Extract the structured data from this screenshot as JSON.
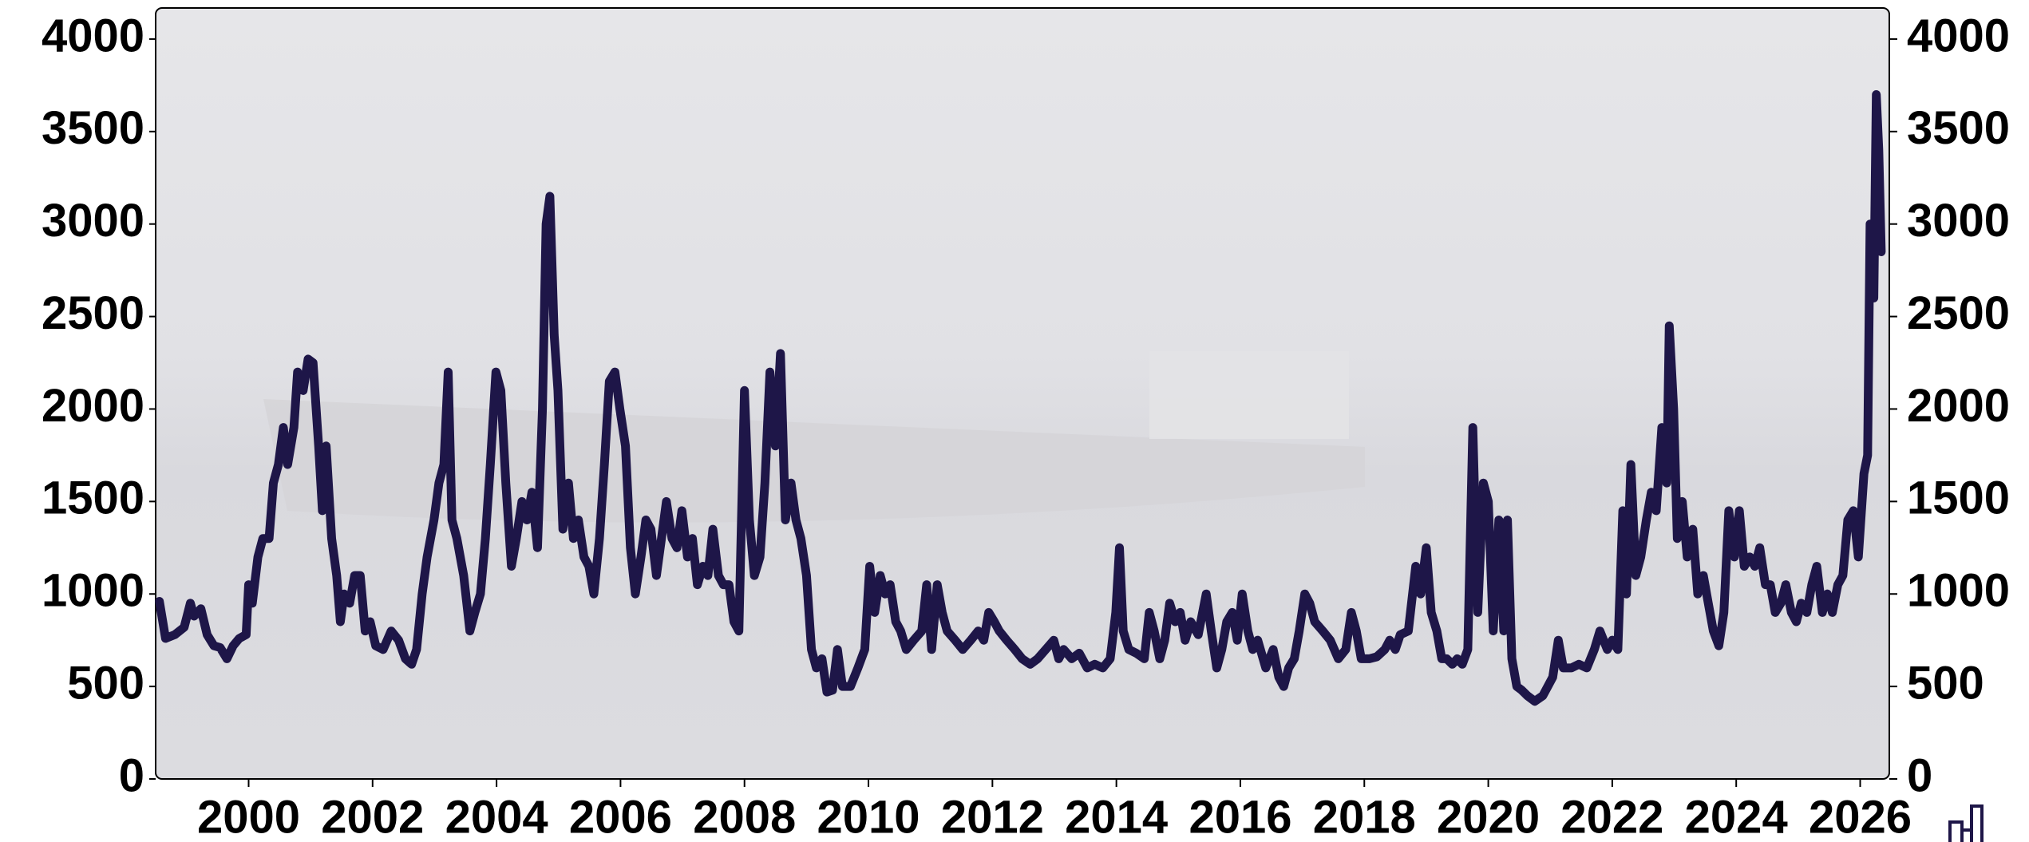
{
  "chart_data": {
    "type": "line",
    "x": [
      1998.56,
      1998.66,
      1998.81,
      1998.96,
      1999.06,
      1999.12,
      1999.23,
      1999.33,
      1999.44,
      1999.54,
      1999.65,
      1999.75,
      1999.85,
      1999.96,
      2000.0,
      2000.06,
      2000.15,
      2000.23,
      2000.33,
      2000.4,
      2000.48,
      2000.56,
      2000.63,
      2000.73,
      2000.79,
      2000.88,
      2000.96,
      2001.04,
      2001.13,
      2001.19,
      2001.25,
      2001.34,
      2001.42,
      2001.48,
      2001.54,
      2001.63,
      2001.71,
      2001.8,
      2001.88,
      2001.96,
      2002.05,
      2002.17,
      2002.3,
      2002.42,
      2002.53,
      2002.63,
      2002.71,
      2002.8,
      2002.88,
      2002.99,
      2003.07,
      2003.15,
      2003.22,
      2003.28,
      2003.36,
      2003.47,
      2003.57,
      2003.65,
      2003.74,
      2003.82,
      2003.9,
      2003.99,
      2004.07,
      2004.15,
      2004.24,
      2004.32,
      2004.41,
      2004.49,
      2004.57,
      2004.66,
      2004.74,
      2004.8,
      2004.86,
      2004.93,
      2004.99,
      2005.07,
      2005.16,
      2005.24,
      2005.32,
      2005.41,
      2005.49,
      2005.57,
      2005.66,
      2005.74,
      2005.82,
      2005.91,
      2005.99,
      2006.08,
      2006.16,
      2006.24,
      2006.33,
      2006.41,
      2006.49,
      2006.58,
      2006.66,
      2006.74,
      2006.83,
      2006.91,
      2006.99,
      2007.08,
      2007.16,
      2007.24,
      2007.33,
      2007.41,
      2007.49,
      2007.58,
      2007.66,
      2007.75,
      2007.83,
      2007.91,
      2008.0,
      2008.08,
      2008.16,
      2008.25,
      2008.33,
      2008.41,
      2008.5,
      2008.58,
      2008.66,
      2008.75,
      2008.83,
      2008.91,
      2009.0,
      2009.08,
      2009.16,
      2009.25,
      2009.33,
      2009.42,
      2009.5,
      2009.58,
      2009.71,
      2009.83,
      2009.94,
      2010.02,
      2010.1,
      2010.19,
      2010.27,
      2010.35,
      2010.44,
      2010.52,
      2010.61,
      2010.73,
      2010.86,
      2010.94,
      2011.02,
      2011.11,
      2011.19,
      2011.27,
      2011.4,
      2011.52,
      2011.65,
      2011.77,
      2011.86,
      2011.94,
      2012.03,
      2012.11,
      2012.23,
      2012.36,
      2012.48,
      2012.61,
      2012.73,
      2012.86,
      2012.99,
      2013.07,
      2013.15,
      2013.28,
      2013.4,
      2013.53,
      2013.65,
      2013.78,
      2013.9,
      2013.99,
      2014.05,
      2014.11,
      2014.2,
      2014.32,
      2014.45,
      2014.53,
      2014.61,
      2014.7,
      2014.78,
      2014.86,
      2014.95,
      2015.03,
      2015.11,
      2015.2,
      2015.32,
      2015.45,
      2015.53,
      2015.62,
      2015.7,
      2015.78,
      2015.87,
      2015.95,
      2016.03,
      2016.12,
      2016.2,
      2016.28,
      2016.41,
      2016.53,
      2016.62,
      2016.7,
      2016.78,
      2016.87,
      2016.95,
      2017.04,
      2017.12,
      2017.2,
      2017.33,
      2017.45,
      2017.58,
      2017.7,
      2017.79,
      2017.87,
      2017.95,
      2018.08,
      2018.2,
      2018.33,
      2018.41,
      2018.5,
      2018.58,
      2018.71,
      2018.83,
      2018.91,
      2019.0,
      2019.08,
      2019.17,
      2019.25,
      2019.33,
      2019.42,
      2019.5,
      2019.58,
      2019.67,
      2019.75,
      2019.83,
      2019.92,
      2020.0,
      2020.08,
      2020.17,
      2020.25,
      2020.31,
      2020.38,
      2020.46,
      2020.54,
      2020.63,
      2020.75,
      2020.88,
      2020.96,
      2021.04,
      2021.13,
      2021.21,
      2021.34,
      2021.46,
      2021.59,
      2021.71,
      2021.8,
      2021.92,
      2022.0,
      2022.09,
      2022.17,
      2022.23,
      2022.3,
      2022.38,
      2022.46,
      2022.55,
      2022.63,
      2022.71,
      2022.8,
      2022.88,
      2022.92,
      2022.99,
      2023.05,
      2023.13,
      2023.21,
      2023.3,
      2023.38,
      2023.47,
      2023.55,
      2023.63,
      2023.72,
      2023.8,
      2023.88,
      2023.97,
      2024.05,
      2024.13,
      2024.22,
      2024.3,
      2024.38,
      2024.47,
      2024.55,
      2024.63,
      2024.72,
      2024.8,
      2024.89,
      2024.97,
      2025.05,
      2025.14,
      2025.22,
      2025.3,
      2025.39,
      2025.47,
      2025.55,
      2025.64,
      2025.72,
      2025.8,
      2025.89,
      2025.97,
      2026.06,
      2026.12,
      2026.16,
      2026.22,
      2026.26,
      2026.3,
      2026.34
    ],
    "series": [
      {
        "color": "#1e1648",
        "values": [
          960,
          760,
          780,
          820,
          950,
          880,
          920,
          780,
          720,
          710,
          650,
          720,
          760,
          780,
          1050,
          950,
          1200,
          1300,
          1300,
          1600,
          1700,
          1900,
          1700,
          1900,
          2200,
          2100,
          2270,
          2250,
          1800,
          1450,
          1800,
          1300,
          1100,
          850,
          1000,
          950,
          1100,
          1100,
          800,
          850,
          720,
          700,
          800,
          750,
          650,
          620,
          700,
          1000,
          1200,
          1400,
          1600,
          1700,
          2200,
          1400,
          1300,
          1100,
          800,
          900,
          1000,
          1300,
          1700,
          2200,
          2100,
          1600,
          1150,
          1300,
          1500,
          1400,
          1550,
          1250,
          2000,
          3000,
          3150,
          2400,
          2100,
          1350,
          1600,
          1300,
          1400,
          1200,
          1150,
          1000,
          1300,
          1700,
          2150,
          2200,
          2000,
          1800,
          1250,
          1000,
          1200,
          1400,
          1350,
          1100,
          1300,
          1500,
          1300,
          1250,
          1450,
          1200,
          1300,
          1050,
          1150,
          1100,
          1350,
          1100,
          1050,
          1050,
          850,
          800,
          2100,
          1400,
          1100,
          1200,
          1600,
          2200,
          1800,
          2300,
          1400,
          1600,
          1400,
          1300,
          1100,
          700,
          600,
          650,
          470,
          480,
          700,
          500,
          500,
          600,
          700,
          1150,
          900,
          1100,
          1000,
          1050,
          850,
          800,
          700,
          750,
          800,
          1050,
          700,
          1050,
          900,
          800,
          750,
          700,
          750,
          800,
          750,
          900,
          850,
          800,
          750,
          700,
          650,
          620,
          650,
          700,
          750,
          650,
          700,
          650,
          680,
          600,
          620,
          600,
          650,
          900,
          1250,
          800,
          700,
          680,
          650,
          900,
          800,
          650,
          750,
          950,
          850,
          900,
          750,
          850,
          780,
          1000,
          800,
          600,
          700,
          850,
          900,
          750,
          1000,
          800,
          700,
          750,
          600,
          700,
          550,
          500,
          600,
          650,
          800,
          1000,
          950,
          850,
          800,
          750,
          650,
          700,
          900,
          800,
          650,
          650,
          660,
          700,
          750,
          700,
          780,
          800,
          1150,
          1000,
          1250,
          900,
          800,
          650,
          650,
          620,
          650,
          620,
          700,
          1900,
          900,
          1600,
          1500,
          800,
          1400,
          800,
          1400,
          650,
          500,
          480,
          450,
          420,
          450,
          500,
          550,
          750,
          600,
          600,
          620,
          600,
          700,
          800,
          700,
          750,
          700,
          1450,
          1000,
          1700,
          1100,
          1200,
          1400,
          1550,
          1450,
          1900,
          1600,
          2450,
          2000,
          1300,
          1500,
          1200,
          1350,
          1000,
          1100,
          950,
          800,
          720,
          900,
          1450,
          1200,
          1450,
          1150,
          1200,
          1150,
          1250,
          1050,
          1050,
          900,
          950,
          1050,
          900,
          850,
          950,
          900,
          1050,
          1150,
          900,
          1000,
          900,
          1050,
          1100,
          1400,
          1450,
          1200,
          1650,
          1750,
          3000,
          2600,
          3700,
          3400,
          2850
        ]
      }
    ],
    "xlim": [
      1998.5,
      2026.47
    ],
    "xticks": [
      2000,
      2002,
      2004,
      2006,
      2008,
      2010,
      2012,
      2014,
      2016,
      2018,
      2020,
      2022,
      2024,
      2026
    ],
    "ylim": [
      0,
      4168
    ],
    "yticks": [
      0,
      500,
      1000,
      1500,
      2000,
      2500,
      3000,
      3500,
      4000
    ],
    "y2lim": [
      0,
      4168
    ],
    "y2ticks": [
      0,
      500,
      1000,
      1500,
      2000,
      2500,
      3000,
      3500,
      4000
    ],
    "grid": false
  }
}
